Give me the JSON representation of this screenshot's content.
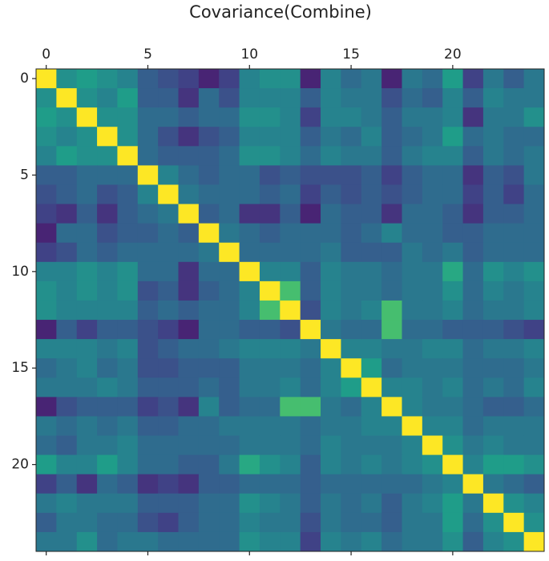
{
  "chart_data": {
    "type": "heatmap",
    "title": "Covariance(Combine)",
    "colormap": "viridis",
    "clim": [
      0,
      1
    ],
    "xlim": [
      -0.5,
      24.5
    ],
    "ylim": [
      -0.5,
      24.5
    ],
    "xticks": [
      0,
      5,
      10,
      15,
      20
    ],
    "yticks": [
      0,
      5,
      10,
      15,
      20
    ],
    "values": [
      [
        1,
        0.5,
        0.55,
        0.5,
        0.45,
        0.3,
        0.25,
        0.2,
        0.1,
        0.2,
        0.45,
        0.5,
        0.5,
        0.1,
        0.45,
        0.35,
        0.4,
        0.1,
        0.4,
        0.35,
        0.55,
        0.2,
        0.4,
        0.3,
        0.4
      ],
      [
        0.5,
        1,
        0.5,
        0.45,
        0.55,
        0.3,
        0.3,
        0.15,
        0.35,
        0.25,
        0.45,
        0.45,
        0.45,
        0.3,
        0.45,
        0.4,
        0.4,
        0.25,
        0.35,
        0.3,
        0.45,
        0.3,
        0.45,
        0.4,
        0.4
      ],
      [
        0.55,
        0.5,
        1,
        0.5,
        0.5,
        0.35,
        0.35,
        0.3,
        0.35,
        0.35,
        0.5,
        0.5,
        0.45,
        0.2,
        0.45,
        0.45,
        0.4,
        0.3,
        0.4,
        0.4,
        0.45,
        0.15,
        0.4,
        0.4,
        0.5
      ],
      [
        0.5,
        0.45,
        0.5,
        1,
        0.5,
        0.35,
        0.25,
        0.15,
        0.25,
        0.3,
        0.45,
        0.45,
        0.45,
        0.3,
        0.4,
        0.35,
        0.45,
        0.3,
        0.35,
        0.4,
        0.55,
        0.35,
        0.4,
        0.35,
        0.35
      ],
      [
        0.45,
        0.55,
        0.5,
        0.5,
        1,
        0.35,
        0.3,
        0.3,
        0.3,
        0.35,
        0.5,
        0.5,
        0.45,
        0.35,
        0.45,
        0.4,
        0.4,
        0.3,
        0.4,
        0.45,
        0.45,
        0.3,
        0.4,
        0.35,
        0.4
      ],
      [
        0.3,
        0.3,
        0.35,
        0.35,
        0.35,
        1,
        0.45,
        0.35,
        0.3,
        0.35,
        0.35,
        0.25,
        0.3,
        0.25,
        0.25,
        0.25,
        0.3,
        0.2,
        0.3,
        0.35,
        0.35,
        0.15,
        0.3,
        0.25,
        0.4
      ],
      [
        0.25,
        0.3,
        0.35,
        0.25,
        0.3,
        0.45,
        1,
        0.4,
        0.35,
        0.35,
        0.35,
        0.3,
        0.35,
        0.2,
        0.3,
        0.25,
        0.3,
        0.25,
        0.3,
        0.35,
        0.35,
        0.2,
        0.3,
        0.2,
        0.35
      ],
      [
        0.2,
        0.15,
        0.3,
        0.15,
        0.3,
        0.35,
        0.4,
        1,
        0.3,
        0.35,
        0.15,
        0.15,
        0.3,
        0.1,
        0.35,
        0.3,
        0.3,
        0.15,
        0.35,
        0.35,
        0.3,
        0.15,
        0.3,
        0.3,
        0.35
      ],
      [
        0.1,
        0.35,
        0.35,
        0.25,
        0.3,
        0.3,
        0.35,
        0.3,
        1,
        0.4,
        0.35,
        0.3,
        0.35,
        0.35,
        0.35,
        0.3,
        0.35,
        0.45,
        0.35,
        0.35,
        0.3,
        0.3,
        0.35,
        0.35,
        0.35
      ],
      [
        0.2,
        0.25,
        0.35,
        0.3,
        0.35,
        0.35,
        0.35,
        0.35,
        0.4,
        1,
        0.35,
        0.35,
        0.35,
        0.35,
        0.4,
        0.3,
        0.3,
        0.3,
        0.4,
        0.35,
        0.4,
        0.3,
        0.35,
        0.35,
        0.35
      ],
      [
        0.45,
        0.45,
        0.5,
        0.45,
        0.5,
        0.35,
        0.35,
        0.15,
        0.35,
        0.35,
        1,
        0.45,
        0.45,
        0.3,
        0.45,
        0.4,
        0.4,
        0.35,
        0.4,
        0.4,
        0.6,
        0.35,
        0.5,
        0.45,
        0.5
      ],
      [
        0.5,
        0.45,
        0.5,
        0.45,
        0.5,
        0.25,
        0.3,
        0.15,
        0.3,
        0.35,
        0.45,
        1,
        0.7,
        0.3,
        0.45,
        0.4,
        0.4,
        0.35,
        0.4,
        0.4,
        0.5,
        0.35,
        0.45,
        0.4,
        0.45
      ],
      [
        0.5,
        0.45,
        0.45,
        0.45,
        0.45,
        0.3,
        0.35,
        0.3,
        0.35,
        0.35,
        0.45,
        0.7,
        1,
        0.25,
        0.45,
        0.4,
        0.45,
        0.7,
        0.4,
        0.4,
        0.45,
        0.35,
        0.4,
        0.4,
        0.45
      ],
      [
        0.1,
        0.3,
        0.2,
        0.3,
        0.3,
        0.25,
        0.2,
        0.1,
        0.35,
        0.35,
        0.3,
        0.3,
        0.25,
        1,
        0.4,
        0.35,
        0.35,
        0.7,
        0.35,
        0.35,
        0.3,
        0.3,
        0.3,
        0.25,
        0.2
      ],
      [
        0.45,
        0.45,
        0.45,
        0.4,
        0.45,
        0.25,
        0.3,
        0.35,
        0.35,
        0.4,
        0.45,
        0.45,
        0.45,
        0.4,
        1,
        0.45,
        0.45,
        0.4,
        0.4,
        0.45,
        0.45,
        0.35,
        0.4,
        0.4,
        0.45
      ],
      [
        0.35,
        0.4,
        0.45,
        0.35,
        0.4,
        0.25,
        0.25,
        0.3,
        0.3,
        0.3,
        0.4,
        0.4,
        0.4,
        0.35,
        0.45,
        1,
        0.55,
        0.35,
        0.4,
        0.4,
        0.4,
        0.35,
        0.35,
        0.35,
        0.4
      ],
      [
        0.4,
        0.4,
        0.4,
        0.45,
        0.4,
        0.3,
        0.3,
        0.3,
        0.35,
        0.3,
        0.4,
        0.4,
        0.45,
        0.35,
        0.45,
        0.55,
        1,
        0.45,
        0.45,
        0.4,
        0.45,
        0.35,
        0.4,
        0.35,
        0.45
      ],
      [
        0.1,
        0.25,
        0.3,
        0.3,
        0.3,
        0.2,
        0.25,
        0.15,
        0.45,
        0.3,
        0.35,
        0.35,
        0.7,
        0.7,
        0.4,
        0.35,
        0.45,
        1,
        0.45,
        0.4,
        0.4,
        0.35,
        0.3,
        0.3,
        0.35
      ],
      [
        0.4,
        0.35,
        0.4,
        0.35,
        0.4,
        0.3,
        0.3,
        0.35,
        0.35,
        0.4,
        0.4,
        0.4,
        0.4,
        0.35,
        0.4,
        0.4,
        0.45,
        0.45,
        1,
        0.45,
        0.45,
        0.35,
        0.4,
        0.4,
        0.4
      ],
      [
        0.35,
        0.3,
        0.4,
        0.4,
        0.45,
        0.35,
        0.35,
        0.35,
        0.35,
        0.35,
        0.4,
        0.4,
        0.4,
        0.35,
        0.45,
        0.4,
        0.4,
        0.4,
        0.45,
        1,
        0.5,
        0.4,
        0.45,
        0.4,
        0.4
      ],
      [
        0.55,
        0.45,
        0.45,
        0.55,
        0.45,
        0.35,
        0.35,
        0.3,
        0.3,
        0.4,
        0.6,
        0.5,
        0.45,
        0.3,
        0.45,
        0.4,
        0.45,
        0.4,
        0.45,
        0.5,
        1,
        0.45,
        0.55,
        0.55,
        0.5
      ],
      [
        0.2,
        0.3,
        0.15,
        0.35,
        0.3,
        0.15,
        0.2,
        0.15,
        0.3,
        0.3,
        0.35,
        0.35,
        0.35,
        0.3,
        0.35,
        0.35,
        0.35,
        0.35,
        0.35,
        0.4,
        0.45,
        1,
        0.4,
        0.35,
        0.3
      ],
      [
        0.4,
        0.45,
        0.4,
        0.4,
        0.4,
        0.3,
        0.3,
        0.3,
        0.35,
        0.35,
        0.5,
        0.45,
        0.4,
        0.3,
        0.4,
        0.35,
        0.4,
        0.3,
        0.4,
        0.45,
        0.55,
        0.4,
        1,
        0.5,
        0.45
      ],
      [
        0.3,
        0.4,
        0.4,
        0.35,
        0.35,
        0.25,
        0.2,
        0.3,
        0.35,
        0.35,
        0.45,
        0.4,
        0.4,
        0.25,
        0.4,
        0.35,
        0.35,
        0.3,
        0.4,
        0.4,
        0.55,
        0.35,
        0.5,
        1,
        0.5
      ],
      [
        0.4,
        0.4,
        0.5,
        0.35,
        0.4,
        0.4,
        0.35,
        0.35,
        0.35,
        0.35,
        0.5,
        0.45,
        0.45,
        0.2,
        0.45,
        0.4,
        0.45,
        0.35,
        0.4,
        0.4,
        0.5,
        0.3,
        0.45,
        0.5,
        1
      ]
    ]
  }
}
